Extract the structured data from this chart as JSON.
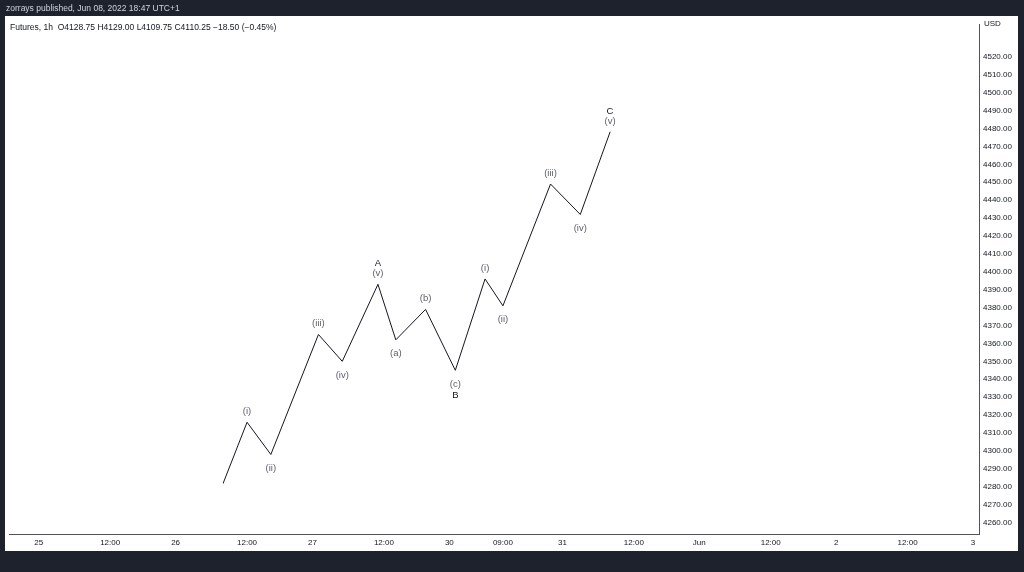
{
  "chart_data": {
    "type": "line",
    "title": "zorrays published, Jun 08, 2022 18:47 UTC+1",
    "subtitle": "Futures, 1h  O4128.75 H4129.00 L4109.75 C4110.25 −18.50 (−0.45%)",
    "ylabel": "USD",
    "categories": [
      null,
      null,
      null,
      null,
      null,
      "25",
      null,
      null,
      null,
      null,
      null,
      null,
      null,
      null,
      null,
      null,
      null,
      "12:00",
      null,
      null,
      null,
      null,
      null,
      null,
      null,
      null,
      null,
      null,
      "26",
      null,
      null,
      null,
      null,
      null,
      null,
      null,
      null,
      null,
      null,
      null,
      "12:00",
      null,
      null,
      null,
      null,
      null,
      null,
      null,
      null,
      null,
      null,
      "27",
      null,
      null,
      null,
      null,
      null,
      null,
      null,
      null,
      null,
      null,
      null,
      "12:00",
      null,
      null,
      null,
      null,
      null,
      null,
      null,
      null,
      null,
      null,
      "30",
      null,
      null,
      null,
      null,
      null,
      null,
      null,
      null,
      "09:00",
      null,
      null,
      null,
      null,
      null,
      null,
      null,
      null,
      null,
      "31",
      null,
      null,
      null,
      null,
      null,
      null,
      null,
      null,
      null,
      null,
      null,
      "12:00",
      null,
      null,
      null,
      null,
      null,
      null,
      null,
      null,
      null,
      null,
      "Jun",
      null,
      null,
      null,
      null,
      null,
      null,
      null,
      null,
      null,
      null,
      null,
      "12:00",
      null,
      null,
      null,
      null,
      null,
      null,
      null,
      null,
      null,
      null,
      "2",
      null,
      null,
      null,
      null,
      null,
      null,
      null,
      null,
      null,
      null,
      null,
      "12:00",
      null,
      null,
      null,
      null,
      null,
      null,
      null,
      null,
      null,
      null,
      "3",
      null
    ],
    "series": [
      {
        "color": "#131722",
        "values": [
          null,
          null,
          null,
          null,
          null,
          null,
          null,
          null,
          null,
          null,
          null,
          null,
          null,
          null,
          null,
          null,
          null,
          null,
          null,
          null,
          null,
          null,
          null,
          null,
          null,
          null,
          null,
          null,
          null,
          null,
          null,
          null,
          null,
          null,
          null,
          null,
          4282,
          null,
          null,
          null,
          4316,
          null,
          null,
          null,
          4298,
          null,
          null,
          null,
          null,
          null,
          null,
          null,
          4365,
          null,
          null,
          null,
          4350,
          null,
          null,
          null,
          null,
          null,
          4393,
          null,
          null,
          4362,
          null,
          null,
          null,
          null,
          4379,
          null,
          null,
          null,
          null,
          4345,
          null,
          null,
          null,
          null,
          4396,
          null,
          null,
          4381,
          null,
          null,
          null,
          null,
          null,
          null,
          null,
          4449,
          null,
          null,
          null,
          null,
          4432,
          null,
          null,
          null,
          null,
          4478,
          null,
          null,
          null,
          null,
          null,
          null,
          null,
          null,
          null,
          null,
          null,
          null,
          null,
          null,
          null,
          null,
          null,
          null,
          null,
          null,
          null,
          null,
          null,
          null,
          null,
          null,
          null,
          null,
          null,
          null,
          null,
          null,
          null,
          null,
          null,
          null,
          null,
          null,
          null,
          null,
          null,
          null,
          null,
          null,
          null,
          null,
          null,
          null,
          null,
          null,
          null,
          null,
          null,
          null,
          null,
          null,
          null,
          null,
          null,
          null,
          null,
          null
        ]
      }
    ],
    "ylim": [
      4253.6,
      4537.9
    ],
    "yticks": [
      {
        "value": 4260,
        "label": "4260.00"
      },
      {
        "value": 4270,
        "label": "4270.00"
      },
      {
        "value": 4280,
        "label": "4280.00"
      },
      {
        "value": 4290,
        "label": "4290.00"
      },
      {
        "value": 4300,
        "label": "4300.00"
      },
      {
        "value": 4310,
        "label": "4310.00"
      },
      {
        "value": 4320,
        "label": "4320.00"
      },
      {
        "value": 4330,
        "label": "4330.00"
      },
      {
        "value": 4340,
        "label": "4340.00"
      },
      {
        "value": 4350,
        "label": "4350.00"
      },
      {
        "value": 4360,
        "label": "4360.00"
      },
      {
        "value": 4370,
        "label": "4370.00"
      },
      {
        "value": 4380,
        "label": "4380.00"
      },
      {
        "value": 4390,
        "label": "4390.00"
      },
      {
        "value": 4400,
        "label": "4400.00"
      },
      {
        "value": 4410,
        "label": "4410.00"
      },
      {
        "value": 4420,
        "label": "4420.00"
      },
      {
        "value": 4430,
        "label": "4430.00"
      },
      {
        "value": 4440,
        "label": "4440.00"
      },
      {
        "value": 4450,
        "label": "4450.00"
      },
      {
        "value": 4460,
        "label": "4460.00"
      },
      {
        "value": 4470,
        "label": "4470.00"
      },
      {
        "value": 4480,
        "label": "4480.00"
      },
      {
        "value": 4490,
        "label": "4490.00"
      },
      {
        "value": 4500,
        "label": "4500.00"
      },
      {
        "value": 4510,
        "label": "4510.00"
      },
      {
        "value": 4520,
        "label": "4520.00"
      }
    ],
    "annotations": [
      {
        "text": "(i)",
        "y": 4316
      },
      {
        "text": "(ii)",
        "y": 4298
      },
      {
        "text": "(iii)",
        "y": 4365
      },
      {
        "text": "(iv)",
        "y": 4350
      },
      {
        "text": "(v)",
        "y": 4393
      },
      {
        "text": "A",
        "y": 4393
      },
      {
        "text": "(a)",
        "y": 4362
      },
      {
        "text": "(b)",
        "y": 4379
      },
      {
        "text": "(c)",
        "y": 4345
      },
      {
        "text": "B",
        "y": 4345
      },
      {
        "text": "(i)",
        "y": 4396
      },
      {
        "text": "(ii)",
        "y": 4381
      },
      {
        "text": "(iii)",
        "y": 4449
      },
      {
        "text": "(iv)",
        "y": 4432
      },
      {
        "text": "(v)",
        "y": 4478
      },
      {
        "text": "C",
        "y": 4478
      }
    ],
    "marker": "none",
    "line_style": "solid"
  }
}
